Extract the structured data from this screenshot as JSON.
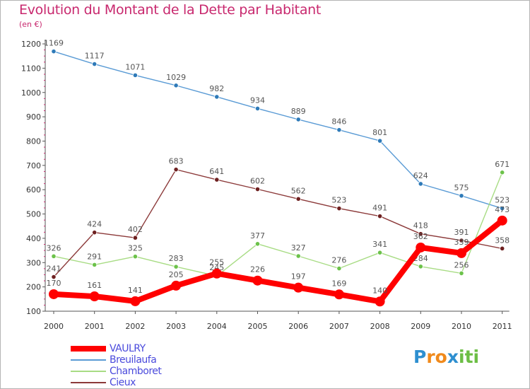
{
  "title": "Evolution du Montant de la Dette par Habitant",
  "unit": "(en €)",
  "brand": {
    "letters": [
      "P",
      "r",
      "o",
      "x",
      "i",
      "t",
      "i"
    ],
    "colors": [
      "#2e8fd0",
      "#f08a1c",
      "#f08a1c",
      "#2e8fd0",
      "#6cbe45",
      "#6cbe45",
      "#6cbe45"
    ]
  },
  "chart_data": {
    "type": "line",
    "title": "Evolution du Montant de la Dette par Habitant",
    "ylabel": "(en €)",
    "xlabel": "",
    "x": [
      "2000",
      "2001",
      "2002",
      "2003",
      "2004",
      "2005",
      "2006",
      "2007",
      "2008",
      "2009",
      "2010",
      "2011"
    ],
    "ylim": [
      100,
      1200
    ],
    "yticks": [
      "100",
      "200",
      "300",
      "400",
      "500",
      "600",
      "700",
      "800",
      "900",
      "1000",
      "1100",
      "1200"
    ],
    "grid": false,
    "legend_position": "bottom-left",
    "series": [
      {
        "name": "Breuilaufa",
        "color": "#5a9bd5",
        "marker": "#2e7ab8",
        "values": [
          1169,
          1117,
          1071,
          1029,
          982,
          934,
          889,
          846,
          801,
          624,
          575,
          523
        ]
      },
      {
        "name": "Chamboret",
        "color": "#a8dc84",
        "marker": "#6cc24a",
        "values": [
          326,
          291,
          325,
          283,
          245,
          377,
          327,
          276,
          341,
          284,
          256,
          671
        ]
      },
      {
        "name": "Cieux",
        "color": "#8c3a3a",
        "marker": "#6e2020",
        "values": [
          241,
          424,
          402,
          683,
          641,
          602,
          562,
          523,
          491,
          418,
          391,
          358
        ]
      },
      {
        "name": "VAULRY",
        "color": "#ff0000",
        "marker": "#ff0000",
        "values": [
          170,
          161,
          141,
          205,
          255,
          226,
          197,
          169,
          140,
          362,
          339,
          473
        ]
      }
    ]
  }
}
